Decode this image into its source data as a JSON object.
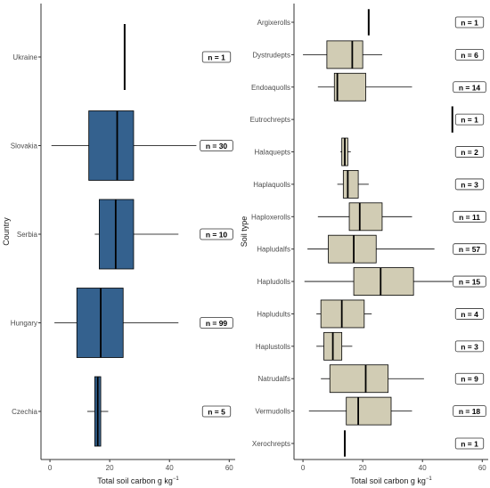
{
  "chart_data": [
    {
      "type": "boxplot",
      "orientation": "horizontal",
      "xlabel_prefix": "Total soil carbon g kg",
      "xlabel_exp": "−1",
      "ylabel": "Country",
      "xlim": [
        -3,
        62
      ],
      "xticks": [
        0,
        20,
        40,
        60
      ],
      "grid": false,
      "box_color": "#34618e",
      "categories": [
        {
          "label": "Ukraine",
          "n": "n = 1",
          "min": 25,
          "q1": 25,
          "median": 25,
          "q3": 25,
          "max": 25
        },
        {
          "label": "Slovakia",
          "n": "n = 30",
          "min": 0.5,
          "q1": 13,
          "median": 22.5,
          "q3": 28,
          "max": 49
        },
        {
          "label": "Serbia",
          "n": "n = 10",
          "min": 15,
          "q1": 16.5,
          "median": 22,
          "q3": 28,
          "max": 43
        },
        {
          "label": "Hungary",
          "n": "n = 99",
          "min": 1.5,
          "q1": 9,
          "median": 17,
          "q3": 24.5,
          "max": 43
        },
        {
          "label": "Czechia",
          "n": "n = 5",
          "min": 12.5,
          "q1": 15,
          "median": 16,
          "q3": 17,
          "max": 19.5
        }
      ]
    },
    {
      "type": "boxplot",
      "orientation": "horizontal",
      "xlabel_prefix": "Total soil carbon g kg",
      "xlabel_exp": "−1",
      "ylabel": "Soil type",
      "xlim": [
        -3,
        62
      ],
      "xticks": [
        0,
        20,
        40,
        60
      ],
      "grid": false,
      "box_color": "#d1ccb4",
      "categories": [
        {
          "label": "Argixerolls",
          "n": "n = 1",
          "min": 22,
          "q1": 22,
          "median": 22,
          "q3": 22,
          "max": 22
        },
        {
          "label": "Dystrudepts",
          "n": "n = 6",
          "min": 0,
          "q1": 8,
          "median": 16.5,
          "q3": 20,
          "max": 26.5
        },
        {
          "label": "Endoaquolls",
          "n": "n = 14",
          "min": 5,
          "q1": 10.5,
          "median": 11.5,
          "q3": 21,
          "max": 36.5
        },
        {
          "label": "Eutrochrepts",
          "n": "n = 1",
          "min": 50,
          "q1": 50,
          "median": 50,
          "q3": 50,
          "max": 50
        },
        {
          "label": "Halaquepts",
          "n": "n = 2",
          "min": 12.5,
          "q1": 13,
          "median": 14,
          "q3": 15,
          "max": 16
        },
        {
          "label": "Haplaquolls",
          "n": "n = 3",
          "min": 11.5,
          "q1": 13.5,
          "median": 15,
          "q3": 18.5,
          "max": 22
        },
        {
          "label": "Haploxerolls",
          "n": "n = 11",
          "min": 5,
          "q1": 15.5,
          "median": 19,
          "q3": 26.5,
          "max": 36.5
        },
        {
          "label": "Hapludalfs",
          "n": "n = 57",
          "min": 1.5,
          "q1": 8.5,
          "median": 17,
          "q3": 24.5,
          "max": 44
        },
        {
          "label": "Hapludolls",
          "n": "n = 15",
          "min": 0.5,
          "q1": 17,
          "median": 26,
          "q3": 37,
          "max": 50
        },
        {
          "label": "Hapludults",
          "n": "n = 4",
          "min": 4.5,
          "q1": 6,
          "median": 13,
          "q3": 20.5,
          "max": 23
        },
        {
          "label": "Haplustolls",
          "n": "n = 3",
          "min": 4.5,
          "q1": 7,
          "median": 10,
          "q3": 13,
          "max": 16.5
        },
        {
          "label": "Natrudalfs",
          "n": "n = 9",
          "min": 6,
          "q1": 9,
          "median": 21,
          "q3": 28.5,
          "max": 40.5
        },
        {
          "label": "Vermudolls",
          "n": "n = 18",
          "min": 2,
          "q1": 14.5,
          "median": 18.5,
          "q3": 29.5,
          "max": 36.5
        },
        {
          "label": "Xerochrepts",
          "n": "n = 1",
          "min": 14,
          "q1": 14,
          "median": 14,
          "q3": 14,
          "max": 14
        }
      ]
    }
  ]
}
